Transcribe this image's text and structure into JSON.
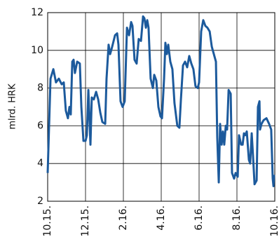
{
  "chart_data": {
    "type": "line",
    "ylabel": "mlrd. HRK",
    "x": [
      0,
      0.15,
      0.3,
      0.44,
      0.59,
      0.74,
      0.85,
      0.96,
      1.07,
      1.15,
      1.22,
      1.3,
      1.37,
      1.44,
      1.56,
      1.7,
      1.78,
      1.89,
      2.0,
      2.07,
      2.15,
      2.26,
      2.33,
      2.44,
      2.56,
      2.67,
      2.78,
      2.89,
      3.04,
      3.11,
      3.22,
      3.3,
      3.41,
      3.56,
      3.67,
      3.74,
      3.85,
      3.96,
      4.07,
      4.19,
      4.3,
      4.41,
      4.48,
      4.59,
      4.7,
      4.81,
      4.93,
      5.04,
      5.11,
      5.19,
      5.26,
      5.33,
      5.44,
      5.56,
      5.63,
      5.74,
      5.85,
      5.96,
      6.04,
      6.15,
      6.22,
      6.3,
      6.37,
      6.48,
      6.59,
      6.7,
      6.85,
      6.96,
      7.04,
      7.15,
      7.26,
      7.37,
      7.48,
      7.59,
      7.7,
      7.81,
      7.93,
      8.0,
      8.11,
      8.22,
      8.33,
      8.44,
      8.56,
      8.67,
      8.78,
      8.89,
      8.96,
      9.04,
      9.11,
      9.19,
      9.26,
      9.33,
      9.41,
      9.48,
      9.56,
      9.67,
      9.74,
      9.85,
      9.93,
      10.04,
      10.11,
      10.22,
      10.3,
      10.37,
      10.44,
      10.52,
      10.63,
      10.7,
      10.78,
      10.85,
      10.93,
      11.04,
      11.11,
      11.19,
      11.22,
      11.3,
      11.41,
      11.56,
      11.7,
      11.81,
      11.89,
      11.93,
      11.96
    ],
    "series": [
      {
        "color": "#1c5a9c",
        "values": [
          3.5,
          8.5,
          9.0,
          8.3,
          8.5,
          8.2,
          8.3,
          6.8,
          6.4,
          7.0,
          6.6,
          9.4,
          9.5,
          8.8,
          9.4,
          9.3,
          7.0,
          5.2,
          5.2,
          5.5,
          7.9,
          5.0,
          7.5,
          7.4,
          7.8,
          7.4,
          6.7,
          6.2,
          6.1,
          8.5,
          10.3,
          9.8,
          10.2,
          10.8,
          10.9,
          10.3,
          7.3,
          7.0,
          7.3,
          11.2,
          10.8,
          11.5,
          11.3,
          9.5,
          9.3,
          10.6,
          10.5,
          11.8,
          11.7,
          11.2,
          11.6,
          11.2,
          8.5,
          8.0,
          8.7,
          8.4,
          7.0,
          6.5,
          6.4,
          8.5,
          10.4,
          9.8,
          10.3,
          9.4,
          9.0,
          7.2,
          6.0,
          5.9,
          7.4,
          9.2,
          9.4,
          9.1,
          9.7,
          9.3,
          9.0,
          8.1,
          8.0,
          8.3,
          11.0,
          11.6,
          11.3,
          11.2,
          11.0,
          10.2,
          9.8,
          9.4,
          5.4,
          3.0,
          6.1,
          5.0,
          5.7,
          5.0,
          6.0,
          5.8,
          7.9,
          7.7,
          3.5,
          3.2,
          3.5,
          3.3,
          5.5,
          5.0,
          5.0,
          5.6,
          5.5,
          5.7,
          4.2,
          4.0,
          5.6,
          4.4,
          2.9,
          3.1,
          7.0,
          7.3,
          5.8,
          6.1,
          6.3,
          6.4,
          6.1,
          5.8,
          3.2,
          2.8,
          3.4
        ]
      }
    ],
    "xlim": [
      0,
      12
    ],
    "xticks": [
      {
        "value": 0,
        "label": "10.15."
      },
      {
        "value": 2,
        "label": "12.15."
      },
      {
        "value": 4,
        "label": "2.16."
      },
      {
        "value": 6,
        "label": "4.16."
      },
      {
        "value": 8,
        "label": "6.16."
      },
      {
        "value": 10,
        "label": "8.16."
      },
      {
        "value": 12,
        "label": "10.16."
      }
    ],
    "ylim": [
      2,
      12
    ],
    "yticks": [
      2,
      4,
      6,
      8,
      10,
      12
    ],
    "grid": true
  }
}
